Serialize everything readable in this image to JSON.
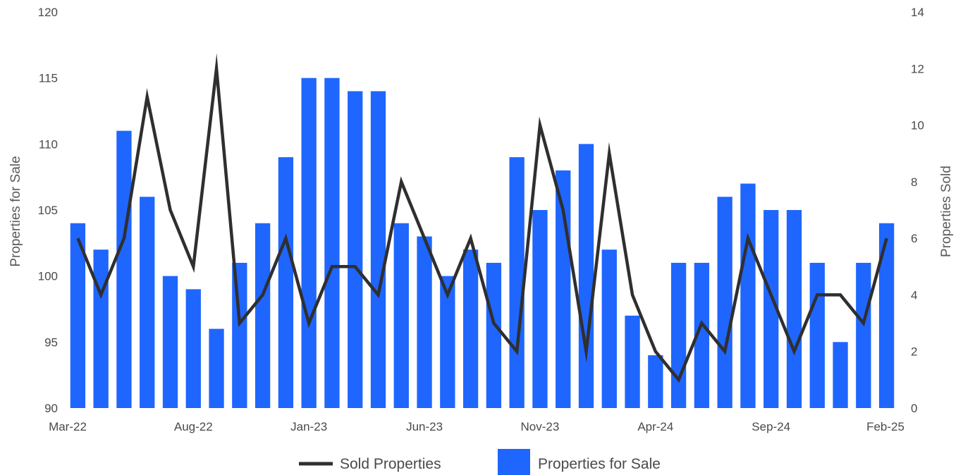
{
  "chart_data": {
    "type": "bar",
    "x": [
      "Mar-22",
      "Apr-22",
      "May-22",
      "Jun-22",
      "Jul-22",
      "Aug-22",
      "Sep-22",
      "Oct-22",
      "Nov-22",
      "Dec-22",
      "Jan-23",
      "Feb-23",
      "Mar-23",
      "Apr-23",
      "May-23",
      "Jun-23",
      "Jul-23",
      "Aug-23",
      "Sep-23",
      "Oct-23",
      "Nov-23",
      "Dec-23",
      "Jan-24",
      "Feb-24",
      "Mar-24",
      "Apr-24",
      "May-24",
      "Jun-24",
      "Jul-24",
      "Aug-24",
      "Sep-24",
      "Oct-24",
      "Nov-24",
      "Dec-24",
      "Jan-25",
      "Feb-25"
    ],
    "x_tick_labels": [
      "Mar-22",
      "Aug-22",
      "Jan-23",
      "Jun-23",
      "Nov-23",
      "Apr-24",
      "Sep-24",
      "Feb-25"
    ],
    "series": [
      {
        "name": "Properties for Sale",
        "type": "bar",
        "axis": "left",
        "color": "#1f66ff",
        "values": [
          104,
          102,
          111,
          106,
          100,
          99,
          96,
          101,
          104,
          109,
          115,
          115,
          114,
          114,
          104,
          103,
          100,
          102,
          101,
          109,
          105,
          108,
          110,
          102,
          97,
          94,
          101,
          101,
          106,
          107,
          105,
          105,
          101,
          95,
          101,
          104
        ]
      },
      {
        "name": "Sold Properties",
        "type": "line",
        "axis": "right",
        "color": "#2f2f2f",
        "values": [
          6,
          4,
          6,
          11,
          7,
          5,
          12,
          3,
          4,
          6,
          3,
          5,
          5,
          4,
          8,
          6,
          4,
          6,
          3,
          2,
          10,
          7,
          2,
          9,
          4,
          2,
          1,
          3,
          2,
          6,
          4,
          2,
          4,
          4,
          3,
          6
        ]
      }
    ],
    "ylabel": "Properties for Sale",
    "ylim": [
      90,
      120
    ],
    "yticks": [
      90,
      95,
      100,
      105,
      110,
      115,
      120
    ],
    "y2label": "Properties Sold",
    "y2lim": [
      0,
      14
    ],
    "y2ticks": [
      0,
      2,
      4,
      6,
      8,
      10,
      12,
      14
    ],
    "grid": false,
    "legend": "bottom-center",
    "legend_entries": [
      "Sold Properties",
      "Properties for Sale"
    ]
  }
}
